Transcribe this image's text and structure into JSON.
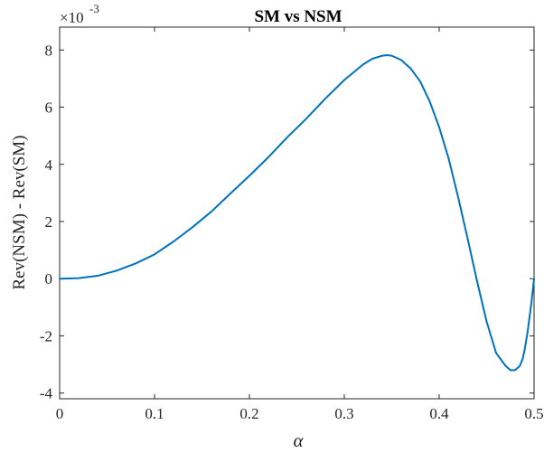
{
  "chart_data": {
    "type": "line",
    "title": "SM vs NSM",
    "xlabel": "α",
    "ylabel": "Rev(NSM) - Rev(SM)",
    "y_exponent_label": "×10",
    "y_exponent_power": "-3",
    "xlim": [
      0,
      0.5
    ],
    "ylim": [
      -4.2,
      8.8
    ],
    "x_scale": "linear",
    "y_scale": "linear",
    "grid": false,
    "legend": "none",
    "x_ticks": [
      0,
      0.1,
      0.2,
      0.3,
      0.4,
      0.5
    ],
    "x_tick_labels": [
      "0",
      "0.1",
      "0.2",
      "0.3",
      "0.4",
      "0.5"
    ],
    "y_ticks": [
      -4,
      -2,
      0,
      2,
      4,
      6,
      8
    ],
    "y_tick_labels": [
      "-4",
      "-2",
      "0",
      "2",
      "4",
      "6",
      "8"
    ],
    "series": [
      {
        "color": "#0072BD",
        "x": [
          0,
          0.02,
          0.04,
          0.06,
          0.08,
          0.1,
          0.12,
          0.14,
          0.16,
          0.18,
          0.2,
          0.22,
          0.24,
          0.26,
          0.28,
          0.3,
          0.32,
          0.33,
          0.34,
          0.345,
          0.35,
          0.36,
          0.37,
          0.38,
          0.39,
          0.4,
          0.41,
          0.42,
          0.43,
          0.44,
          0.45,
          0.46,
          0.47,
          0.475,
          0.48,
          0.485,
          0.488,
          0.49,
          0.493,
          0.495,
          0.497,
          0.5
        ],
        "y": [
          0,
          0.02,
          0.1,
          0.28,
          0.53,
          0.85,
          1.3,
          1.8,
          2.35,
          2.98,
          3.6,
          4.25,
          4.95,
          5.6,
          6.3,
          6.95,
          7.5,
          7.7,
          7.8,
          7.82,
          7.8,
          7.65,
          7.35,
          6.9,
          6.2,
          5.3,
          4.2,
          2.85,
          1.4,
          -0.1,
          -1.5,
          -2.6,
          -3.05,
          -3.2,
          -3.2,
          -3.05,
          -2.8,
          -2.5,
          -1.9,
          -1.4,
          -0.9,
          0
        ]
      }
    ]
  }
}
